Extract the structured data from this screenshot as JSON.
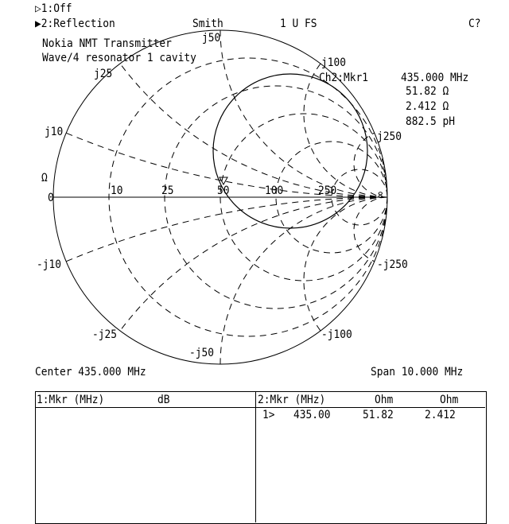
{
  "header": {
    "ch1": "▷1:Off",
    "ch2": "▶2:Reflection",
    "format": "Smith",
    "scale": "1 U FS",
    "cal_status": "C?"
  },
  "title": {
    "line1": "Nokia NMT Transmitter",
    "line2": "Wave/4 resonator 1 cavity"
  },
  "marker_readout": {
    "label": "Ch2:Mkr1",
    "frequency": "435.000 MHz",
    "resistance": "51.82 Ω",
    "reactance": "2.412 Ω",
    "inductance": "882.5 pH"
  },
  "chart": {
    "type": "smith",
    "z0": 50,
    "grid": "dashed",
    "unit_label": "Ω",
    "resistance_labels": [
      "0",
      "10",
      "25",
      "50",
      "100",
      "250",
      "∞"
    ],
    "reactance_labels": [
      "j10",
      "j25",
      "j50",
      "j100",
      "j250",
      "-j10",
      "-j25",
      "-j50",
      "-j100",
      "-j250"
    ],
    "marker": {
      "id": "1",
      "frequency_mhz": 435.0,
      "r_ohm": 51.82,
      "x_ohm": 2.412
    },
    "trace_color": "#000000"
  },
  "footer": {
    "center": "Center 435.000 MHz",
    "span": "Span 10.000 MHz"
  },
  "table": {
    "left": {
      "header": [
        "1:Mkr (MHz)",
        "dB"
      ],
      "rows": []
    },
    "right": {
      "header": [
        "2:Mkr (MHz)",
        "Ohm",
        "Ohm"
      ],
      "rows": [
        [
          "1>",
          "435.00",
          "51.82",
          "2.412"
        ]
      ]
    }
  }
}
